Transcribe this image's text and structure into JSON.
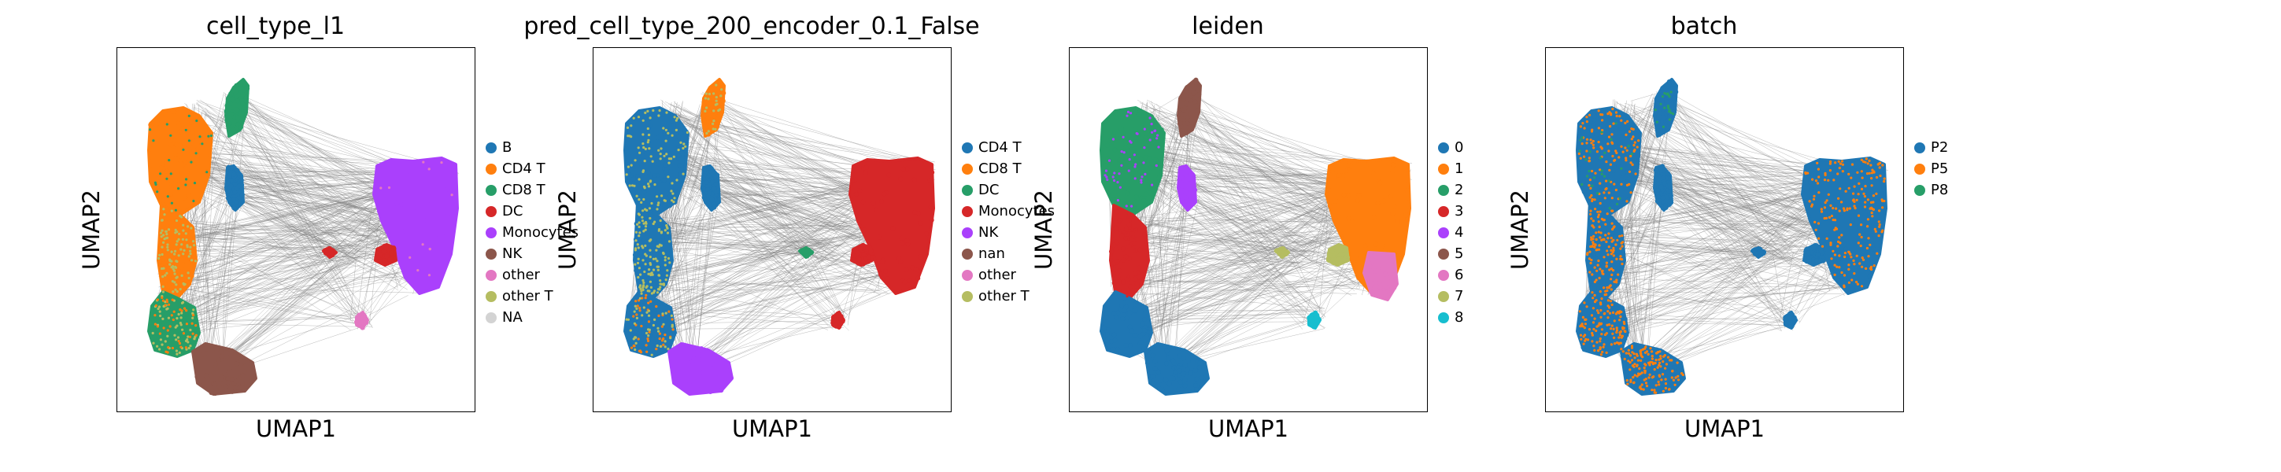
{
  "chart_data": [
    {
      "type": "scatter",
      "title": "cell_type_l1",
      "xlabel": "UMAP1",
      "ylabel": "UMAP2",
      "grid": false,
      "legend_position": "right",
      "edge_color": "#808080",
      "series": [
        {
          "name": "B",
          "color": "#1f77b4"
        },
        {
          "name": "CD4 T",
          "color": "#ff7f0e"
        },
        {
          "name": "CD8 T",
          "color": "#279e68"
        },
        {
          "name": "DC",
          "color": "#d62728"
        },
        {
          "name": "Monocytes",
          "color": "#aa40fc"
        },
        {
          "name": "NK",
          "color": "#8c564b"
        },
        {
          "name": "other",
          "color": "#e377c2"
        },
        {
          "name": "other T",
          "color": "#b5bd61"
        },
        {
          "name": "NA",
          "color": "#d3d3d3"
        }
      ]
    },
    {
      "type": "scatter",
      "title": "pred_cell_type_200_encoder_0.1_False",
      "xlabel": "UMAP1",
      "ylabel": "UMAP2",
      "grid": false,
      "legend_position": "right",
      "edge_color": "#808080",
      "series": [
        {
          "name": "CD4 T",
          "color": "#1f77b4"
        },
        {
          "name": "CD8 T",
          "color": "#ff7f0e"
        },
        {
          "name": "DC",
          "color": "#279e68"
        },
        {
          "name": "Monocytes",
          "color": "#d62728"
        },
        {
          "name": "NK",
          "color": "#aa40fc"
        },
        {
          "name": "nan",
          "color": "#8c564b"
        },
        {
          "name": "other",
          "color": "#e377c2"
        },
        {
          "name": "other T",
          "color": "#b5bd61"
        }
      ]
    },
    {
      "type": "scatter",
      "title": "leiden",
      "xlabel": "UMAP1",
      "ylabel": "UMAP2",
      "grid": false,
      "legend_position": "right",
      "edge_color": "#808080",
      "series": [
        {
          "name": "0",
          "color": "#1f77b4"
        },
        {
          "name": "1",
          "color": "#ff7f0e"
        },
        {
          "name": "2",
          "color": "#279e68"
        },
        {
          "name": "3",
          "color": "#d62728"
        },
        {
          "name": "4",
          "color": "#aa40fc"
        },
        {
          "name": "5",
          "color": "#8c564b"
        },
        {
          "name": "6",
          "color": "#e377c2"
        },
        {
          "name": "7",
          "color": "#b5bd61"
        },
        {
          "name": "8",
          "color": "#17becf"
        }
      ]
    },
    {
      "type": "scatter",
      "title": "batch",
      "xlabel": "UMAP1",
      "ylabel": "UMAP2",
      "grid": false,
      "legend_position": "right",
      "edge_color": "#808080",
      "series": [
        {
          "name": "P2",
          "color": "#1f77b4"
        },
        {
          "name": "P5",
          "color": "#ff7f0e"
        },
        {
          "name": "P8",
          "color": "#279e68"
        }
      ]
    }
  ]
}
